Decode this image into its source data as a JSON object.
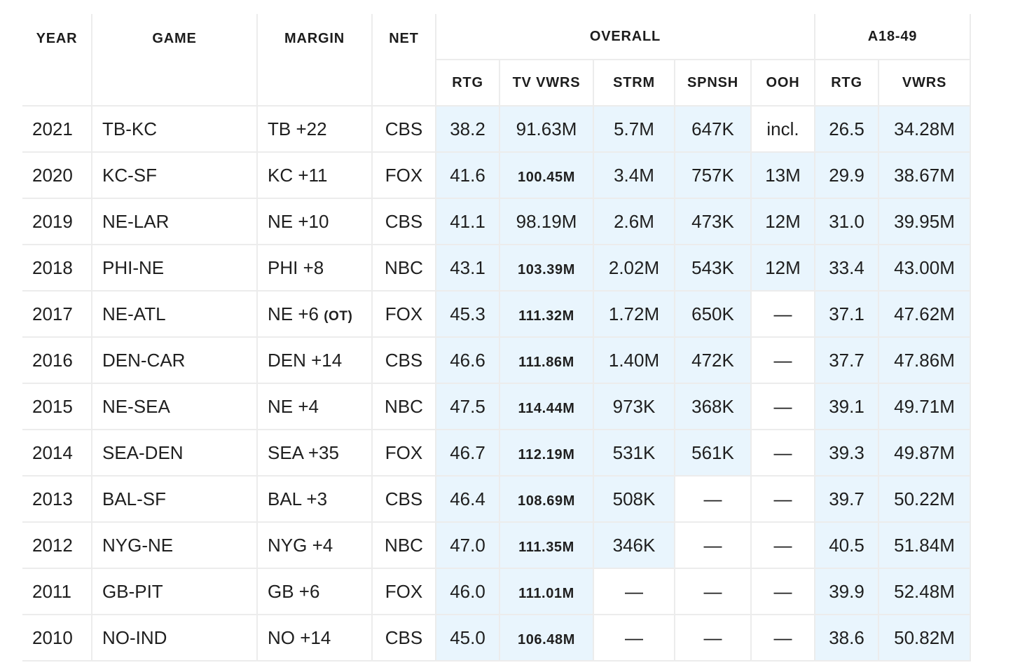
{
  "headers": {
    "year": "YEAR",
    "game": "GAME",
    "margin": "MARGIN",
    "net": "NET",
    "overall": "OVERALL",
    "a1849": "A18-49",
    "rtg": "RTG",
    "tv_vwrs": "TV VWRS",
    "strm": "STRM",
    "spnsh": "SPNSH",
    "ooh": "OOH",
    "demo_rtg": "RTG",
    "demo_vwrs": "VWRS"
  },
  "rows": [
    {
      "year": "2021",
      "game": "TB-KC",
      "margin": "TB +22",
      "margin_note": "",
      "net": "CBS",
      "rtg": "38.2",
      "tv": "91.63M",
      "strm": "5.7M",
      "spnsh": "647K",
      "ooh": "incl.",
      "drtg": "26.5",
      "dvwrs": "34.28M"
    },
    {
      "year": "2020",
      "game": "KC-SF",
      "margin": "KC +11",
      "margin_note": "",
      "net": "FOX",
      "rtg": "41.6",
      "tv": "100.45M",
      "strm": "3.4M",
      "spnsh": "757K",
      "ooh": "13M",
      "drtg": "29.9",
      "dvwrs": "38.67M"
    },
    {
      "year": "2019",
      "game": "NE-LAR",
      "margin": "NE +10",
      "margin_note": "",
      "net": "CBS",
      "rtg": "41.1",
      "tv": "98.19M",
      "strm": "2.6M",
      "spnsh": "473K",
      "ooh": "12M",
      "drtg": "31.0",
      "dvwrs": "39.95M"
    },
    {
      "year": "2018",
      "game": "PHI-NE",
      "margin": "PHI +8",
      "margin_note": "",
      "net": "NBC",
      "rtg": "43.1",
      "tv": "103.39M",
      "strm": "2.02M",
      "spnsh": "543K",
      "ooh": "12M",
      "drtg": "33.4",
      "dvwrs": "43.00M"
    },
    {
      "year": "2017",
      "game": "NE-ATL",
      "margin": "NE +6",
      "margin_note": "(OT)",
      "net": "FOX",
      "rtg": "45.3",
      "tv": "111.32M",
      "strm": "1.72M",
      "spnsh": "650K",
      "ooh": "—",
      "drtg": "37.1",
      "dvwrs": "47.62M"
    },
    {
      "year": "2016",
      "game": "DEN-CAR",
      "margin": "DEN +14",
      "margin_note": "",
      "net": "CBS",
      "rtg": "46.6",
      "tv": "111.86M",
      "strm": "1.40M",
      "spnsh": "472K",
      "ooh": "—",
      "drtg": "37.7",
      "dvwrs": "47.86M"
    },
    {
      "year": "2015",
      "game": "NE-SEA",
      "margin": "NE +4",
      "margin_note": "",
      "net": "NBC",
      "rtg": "47.5",
      "tv": "114.44M",
      "strm": "973K",
      "spnsh": "368K",
      "ooh": "—",
      "drtg": "39.1",
      "dvwrs": "49.71M"
    },
    {
      "year": "2014",
      "game": "SEA-DEN",
      "margin": "SEA +35",
      "margin_note": "",
      "net": "FOX",
      "rtg": "46.7",
      "tv": "112.19M",
      "strm": "531K",
      "spnsh": "561K",
      "ooh": "—",
      "drtg": "39.3",
      "dvwrs": "49.87M"
    },
    {
      "year": "2013",
      "game": "BAL-SF",
      "margin": "BAL +3",
      "margin_note": "",
      "net": "CBS",
      "rtg": "46.4",
      "tv": "108.69M",
      "strm": "508K",
      "spnsh": "—",
      "ooh": "—",
      "drtg": "39.7",
      "dvwrs": "50.22M"
    },
    {
      "year": "2012",
      "game": "NYG-NE",
      "margin": "NYG +4",
      "margin_note": "",
      "net": "NBC",
      "rtg": "47.0",
      "tv": "111.35M",
      "strm": "346K",
      "spnsh": "—",
      "ooh": "—",
      "drtg": "40.5",
      "dvwrs": "51.84M"
    },
    {
      "year": "2011",
      "game": "GB-PIT",
      "margin": "GB +6",
      "margin_note": "",
      "net": "FOX",
      "rtg": "46.0",
      "tv": "111.01M",
      "strm": "—",
      "spnsh": "—",
      "ooh": "—",
      "drtg": "39.9",
      "dvwrs": "52.48M"
    },
    {
      "year": "2010",
      "game": "NO-IND",
      "margin": "NO +14",
      "margin_note": "",
      "net": "CBS",
      "rtg": "45.0",
      "tv": "106.48M",
      "strm": "—",
      "spnsh": "—",
      "ooh": "—",
      "drtg": "38.6",
      "dvwrs": "50.82M"
    }
  ],
  "colors": {
    "shade": "#e9f5fd",
    "border": "#ececec"
  }
}
